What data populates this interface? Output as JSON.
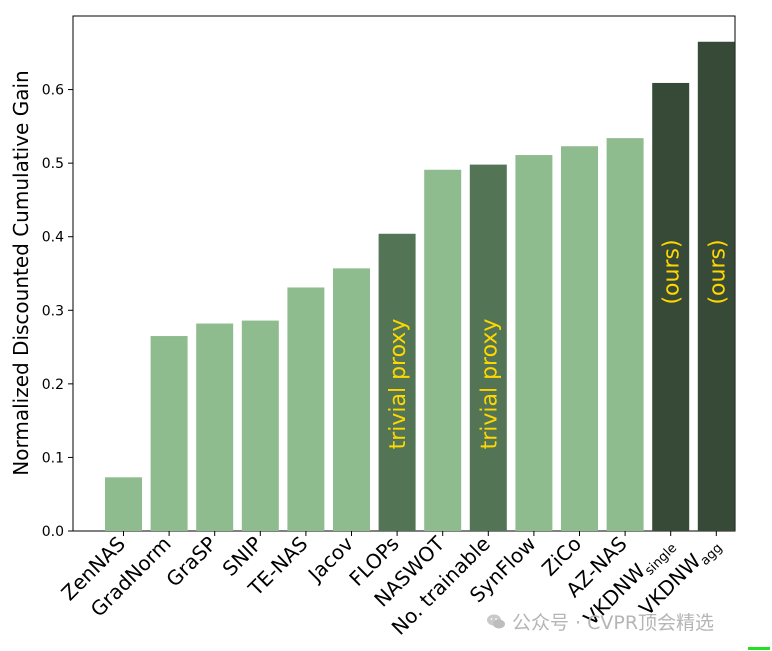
{
  "chart_data": {
    "type": "bar",
    "title": "",
    "ylabel": "Normalized Discounted Cumulative Gain",
    "xlabel": "",
    "ylim": [
      0,
      0.7
    ],
    "yticks": [
      "0.0",
      "0.1",
      "0.2",
      "0.3",
      "0.4",
      "0.5",
      "0.6"
    ],
    "categories": [
      {
        "label": "ZenNAS"
      },
      {
        "label": "GradNorm"
      },
      {
        "label": "GraSP"
      },
      {
        "label": "SNIP"
      },
      {
        "label": "TE-NAS"
      },
      {
        "label": "Jacov"
      },
      {
        "label": "FLOPs"
      },
      {
        "label": "NASWOT"
      },
      {
        "label": "No. trainable"
      },
      {
        "label": "SynFlow"
      },
      {
        "label": "ZiCo"
      },
      {
        "label": "AZ-NAS"
      },
      {
        "label": "VKDNW",
        "sub": "single"
      },
      {
        "label": "VKDNW",
        "sub": "agg"
      }
    ],
    "values": [
      0.073,
      0.265,
      0.282,
      0.286,
      0.331,
      0.357,
      0.404,
      0.491,
      0.498,
      0.511,
      0.523,
      0.534,
      0.609,
      0.665
    ],
    "bar_groups": [
      "proxy",
      "proxy",
      "proxy",
      "proxy",
      "proxy",
      "proxy",
      "trivial",
      "proxy",
      "trivial",
      "proxy",
      "proxy",
      "proxy",
      "ours",
      "ours"
    ],
    "bar_annotations": [
      "",
      "",
      "",
      "",
      "",
      "",
      "trivial proxy",
      "",
      "trivial proxy",
      "",
      "",
      "",
      "(ours)",
      "(ours)"
    ],
    "colors": {
      "proxy": "#8fbc8f",
      "trivial": "#537555",
      "ours": "#374a38",
      "annotation": "#ffd700"
    },
    "grid": false,
    "legend": "none"
  },
  "watermark": {
    "text": "公众号 · CVPR顶会精选",
    "icon": "wechat-icon"
  }
}
